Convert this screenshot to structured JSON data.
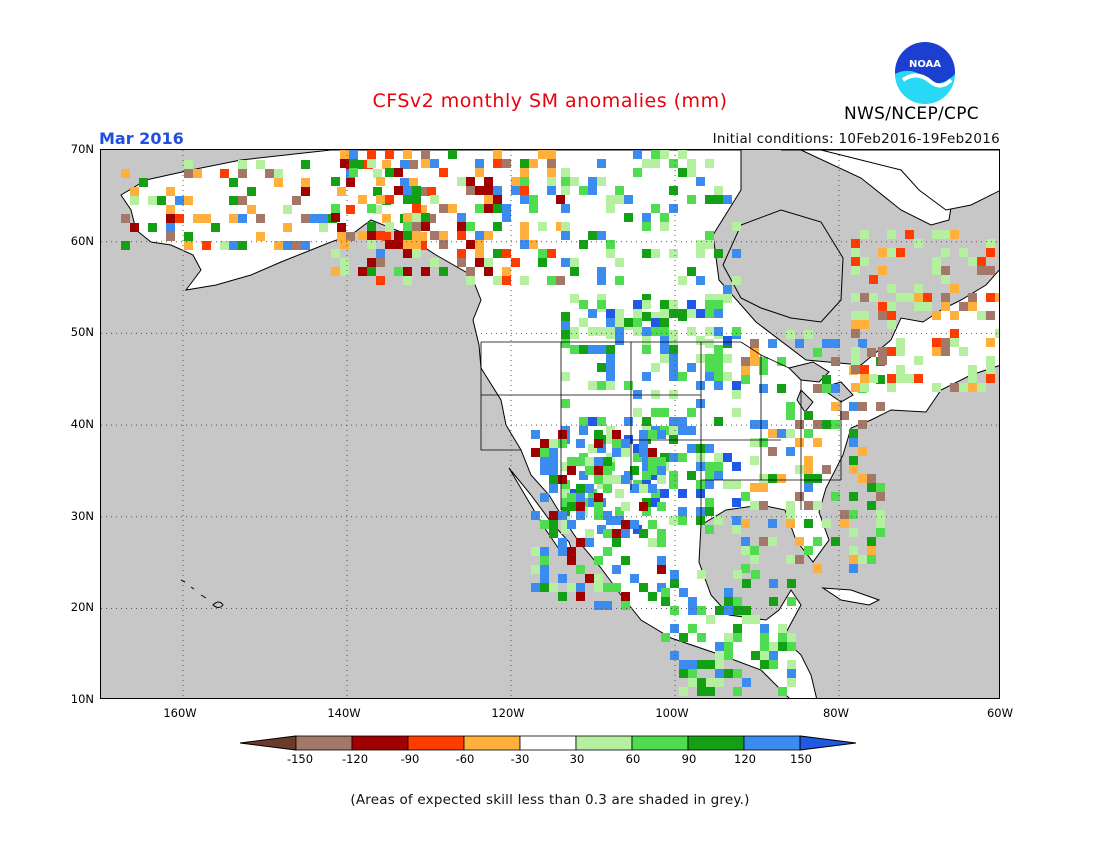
{
  "header": {
    "title": "CFSv2 monthly SM anomalies (mm)",
    "month": "Mar 2016",
    "initial_conditions": "Initial conditions: 10Feb2016-19Feb2016",
    "agency": "NWS/NCEP/CPC",
    "logo_text": "NOAA"
  },
  "map": {
    "lat_labels": [
      "70N",
      "60N",
      "50N",
      "40N",
      "30N",
      "20N",
      "10N"
    ],
    "lon_labels": [
      "160W",
      "140W",
      "120W",
      "100W",
      "80W",
      "60W"
    ],
    "ocean_color": "#c7c7c7",
    "land_fill_note_color": "#ffffff",
    "gridlines": "dotted"
  },
  "legend": {
    "tick_labels": [
      "-150",
      "-120",
      "-90",
      "-60",
      "-30",
      "30",
      "60",
      "90",
      "120",
      "150"
    ],
    "colors": [
      "#6b3a2a",
      "#a47868",
      "#a10000",
      "#ff3c00",
      "#ffb03c",
      "#ffffff",
      "#b4f0a0",
      "#50dc50",
      "#14a014",
      "#3c8cf0",
      "#1e5ae6"
    ]
  },
  "footnote": "(Areas of expected skill less than 0.3 are shaded in grey.)"
}
